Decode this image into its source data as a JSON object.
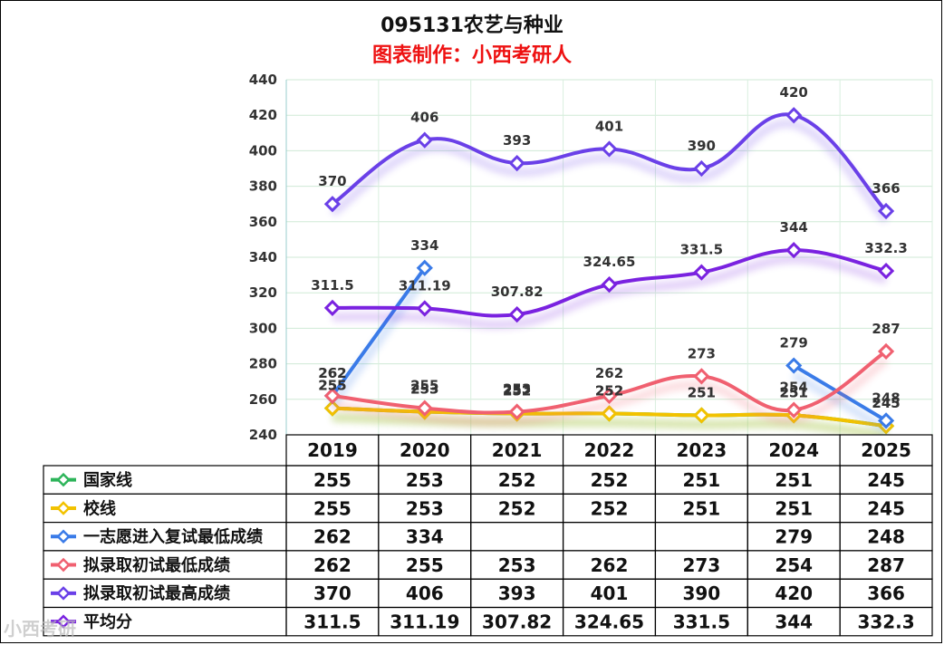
{
  "chart_data": {
    "type": "line",
    "title": "095131农艺与种业",
    "subtitle": "图表制作：小西考研人",
    "categories": [
      "2019",
      "2020",
      "2021",
      "2022",
      "2023",
      "2024",
      "2025"
    ],
    "ylim": [
      240,
      440
    ],
    "yticks": [
      240,
      260,
      280,
      300,
      320,
      340,
      360,
      380,
      400,
      420,
      440
    ],
    "grid": true,
    "legend_placement": "data table below plot",
    "series": [
      {
        "name": "国家线",
        "color": "#2db45a",
        "values": [
          255,
          253,
          252,
          252,
          251,
          251,
          245
        ],
        "labels": [
          "255",
          "253",
          "252",
          "252",
          "251",
          "251",
          "245"
        ]
      },
      {
        "name": "校线",
        "color": "#f2c200",
        "values": [
          255,
          253,
          252,
          252,
          251,
          251,
          245
        ],
        "labels": [
          "255",
          "253",
          "252",
          "252",
          "251",
          "251",
          "245"
        ]
      },
      {
        "name": "一志愿进入复试最低成绩",
        "color": "#3a7be8",
        "values": [
          262,
          334,
          null,
          null,
          null,
          279,
          248
        ],
        "labels": [
          "262",
          "334",
          "",
          "",
          "",
          "279",
          "248"
        ]
      },
      {
        "name": "拟录取初试最低成绩",
        "color": "#f06070",
        "values": [
          262,
          255,
          253,
          262,
          273,
          254,
          287
        ],
        "labels": [
          "262",
          "255",
          "253",
          "262",
          "273",
          "254",
          "287"
        ]
      },
      {
        "name": "拟录取初试最高成绩",
        "color": "#6a40e8",
        "values": [
          370,
          406,
          393,
          401,
          390,
          420,
          366
        ],
        "labels": [
          "370",
          "406",
          "393",
          "401",
          "390",
          "420",
          "366"
        ]
      },
      {
        "name": "平均分",
        "color": "#7a22e0",
        "values": [
          311.5,
          311.19,
          307.82,
          324.65,
          331.5,
          344,
          332.3
        ],
        "labels": [
          "311.5",
          "311.19",
          "307.82",
          "324.65",
          "331.5",
          "344",
          "332.3"
        ]
      }
    ]
  },
  "watermark": "小西考研"
}
